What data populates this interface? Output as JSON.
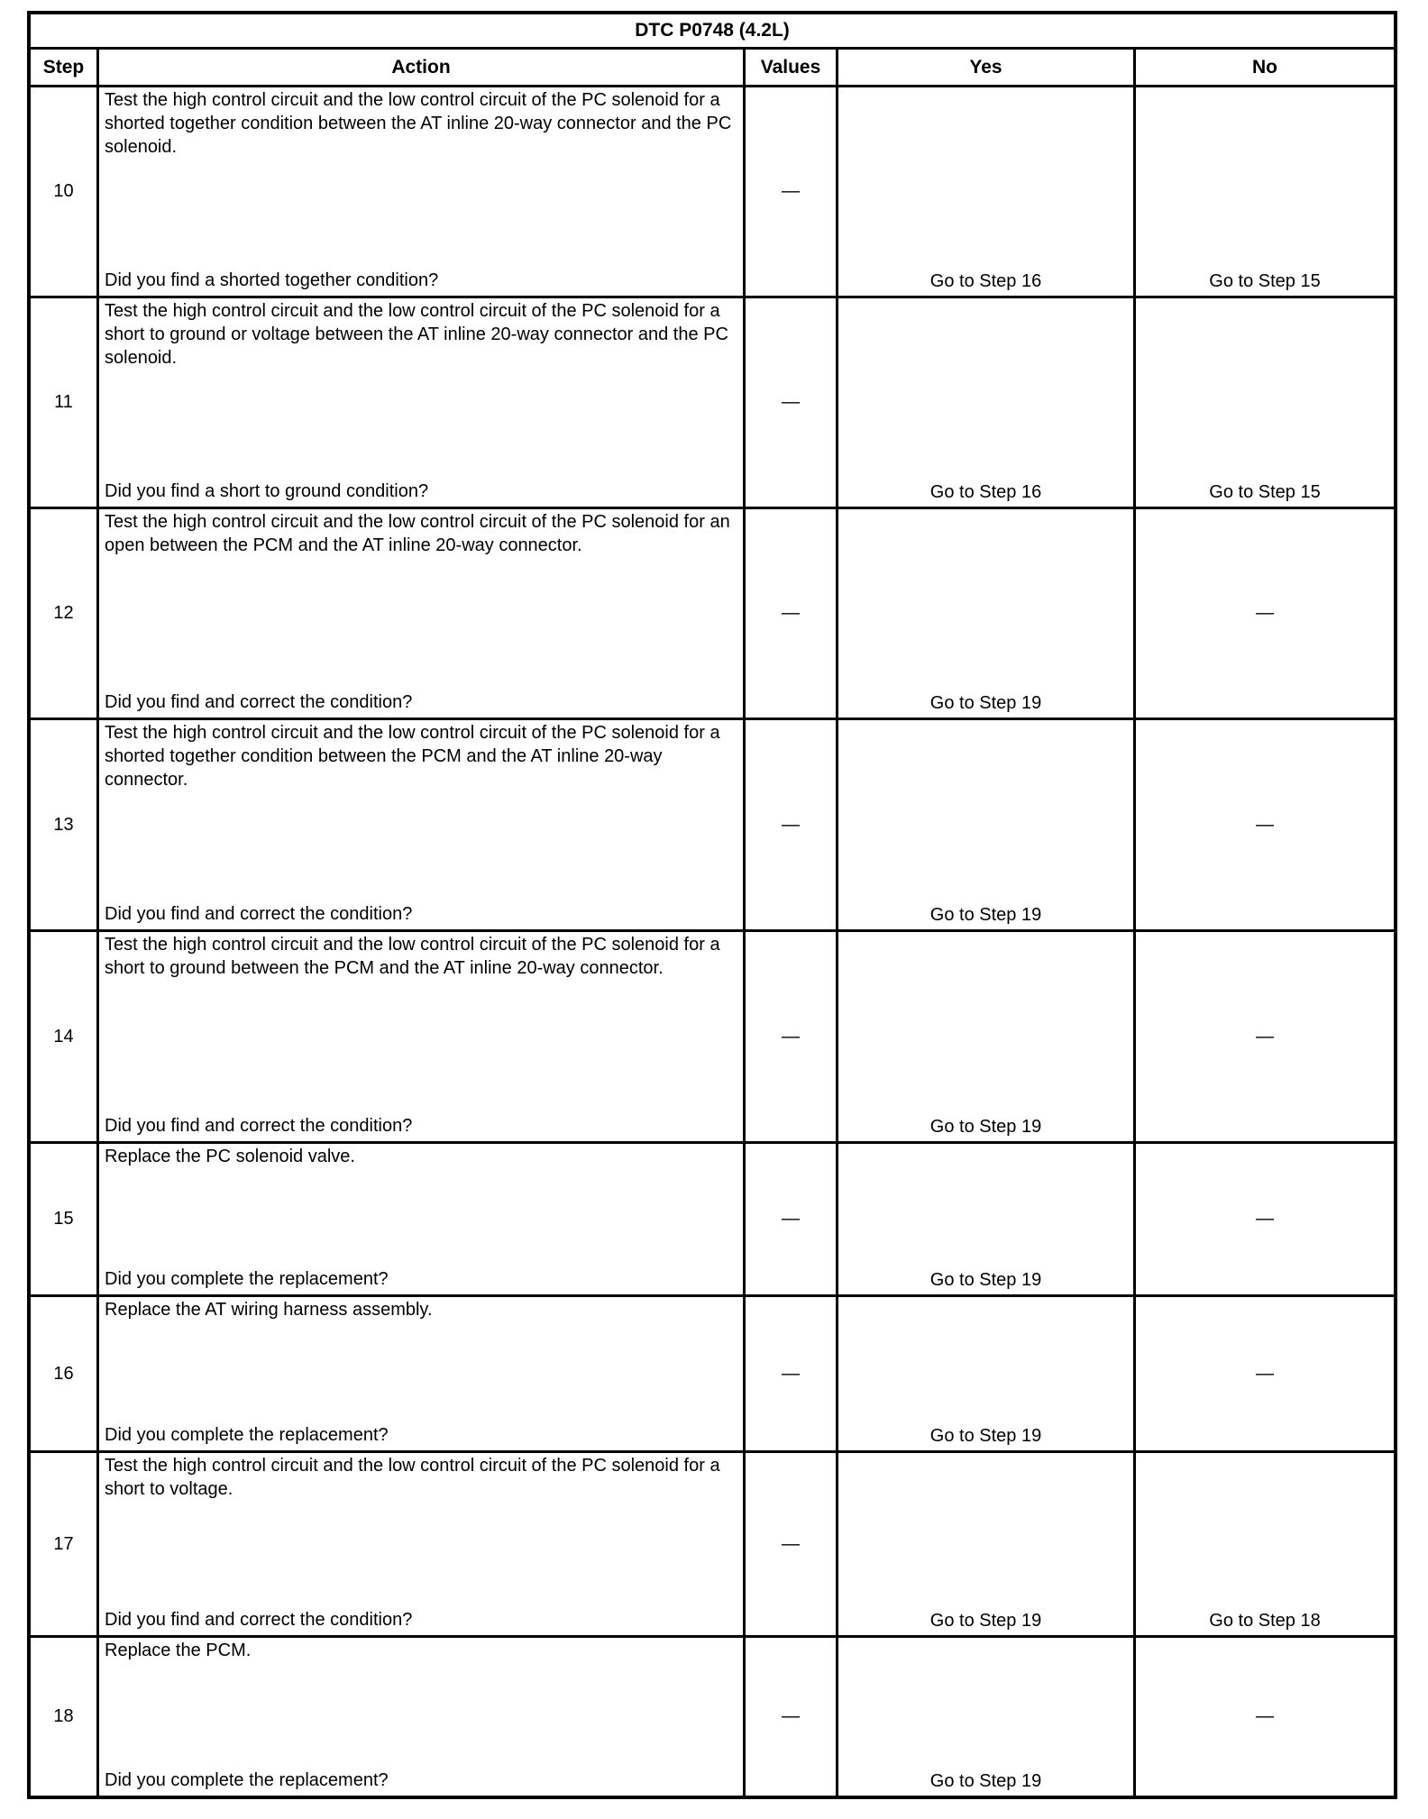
{
  "table": {
    "title": "DTC P0748 (4.2L)",
    "columns": [
      "Step",
      "Action",
      "Values",
      "Yes",
      "No"
    ],
    "rows": [
      {
        "step": "10",
        "action": "Test the high control circuit and the low control circuit of the PC solenoid for a shorted together condition between the AT inline 20-way connector and the PC solenoid.",
        "question": "Did you find a shorted together condition?",
        "values": "—",
        "yes": "Go to Step 16",
        "no": "Go to Step 15"
      },
      {
        "step": "11",
        "action": "Test the high control circuit and the low control circuit of the PC solenoid for a short to ground or voltage between the AT inline 20-way connector and the PC solenoid.",
        "question": "Did you find a short to ground condition?",
        "values": "—",
        "yes": "Go to Step 16",
        "no": "Go to Step 15"
      },
      {
        "step": "12",
        "action": "Test the high control circuit and the low control circuit of the PC solenoid for an open between the PCM and the AT inline 20-way connector.",
        "question": "Did you find and correct the condition?",
        "values": "—",
        "yes": "Go to Step 19",
        "no": "—"
      },
      {
        "step": "13",
        "action": "Test the high control circuit and the low control circuit of the PC solenoid for a shorted together condition between the PCM and the AT inline 20-way connector.",
        "question": "Did you find and correct the condition?",
        "values": "—",
        "yes": "Go to Step 19",
        "no": "—"
      },
      {
        "step": "14",
        "action": "Test the high control circuit and the low control circuit of the PC solenoid for a short to ground between the PCM and the AT inline 20-way connector.",
        "question": "Did you find and correct the condition?",
        "values": "—",
        "yes": "Go to Step 19",
        "no": "—"
      },
      {
        "step": "15",
        "action": "Replace the PC solenoid valve.",
        "question": "Did you complete the replacement?",
        "values": "—",
        "yes": "Go to Step 19",
        "no": "—"
      },
      {
        "step": "16",
        "action": "Replace the AT wiring harness assembly.",
        "question": "Did you complete the replacement?",
        "values": "—",
        "yes": "Go to Step 19",
        "no": "—"
      },
      {
        "step": "17",
        "action": "Test the high control circuit and the low control circuit of the PC solenoid for a short to voltage.",
        "question": "Did you find and correct the condition?",
        "values": "—",
        "yes": "Go to Step 19",
        "no": "Go to Step 18"
      },
      {
        "step": "18",
        "action": "Replace the PCM.",
        "question": "Did you complete the replacement?",
        "values": "—",
        "yes": "Go to Step 19",
        "no": "—"
      }
    ]
  }
}
